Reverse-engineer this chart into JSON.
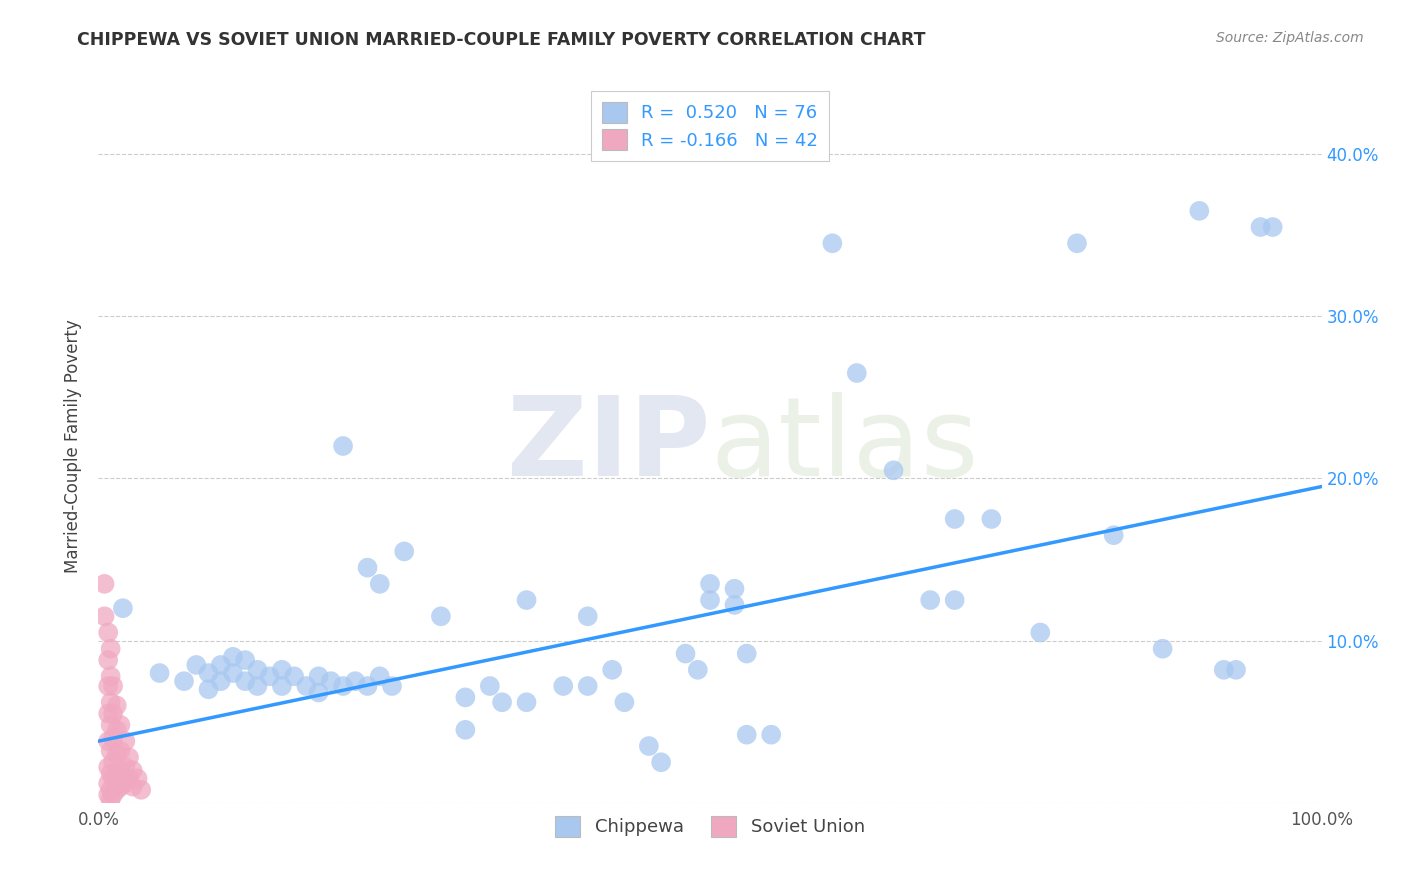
{
  "title": "CHIPPEWA VS SOVIET UNION MARRIED-COUPLE FAMILY POVERTY CORRELATION CHART",
  "source": "Source: ZipAtlas.com",
  "ylabel": "Married-Couple Family Poverty",
  "xlim": [
    0.0,
    1.0
  ],
  "ylim": [
    0.0,
    0.44
  ],
  "chippewa_color": "#a8c8f0",
  "soviet_color": "#f0a8c0",
  "trend_color": "#3399ff",
  "watermark_zip": "ZIP",
  "watermark_atlas": "atlas",
  "chippewa_points": [
    [
      0.02,
      0.12
    ],
    [
      0.05,
      0.08
    ],
    [
      0.07,
      0.075
    ],
    [
      0.08,
      0.085
    ],
    [
      0.09,
      0.08
    ],
    [
      0.09,
      0.07
    ],
    [
      0.1,
      0.085
    ],
    [
      0.1,
      0.075
    ],
    [
      0.11,
      0.09
    ],
    [
      0.11,
      0.08
    ],
    [
      0.12,
      0.088
    ],
    [
      0.12,
      0.075
    ],
    [
      0.13,
      0.082
    ],
    [
      0.13,
      0.072
    ],
    [
      0.14,
      0.078
    ],
    [
      0.15,
      0.082
    ],
    [
      0.15,
      0.072
    ],
    [
      0.16,
      0.078
    ],
    [
      0.17,
      0.072
    ],
    [
      0.18,
      0.078
    ],
    [
      0.18,
      0.068
    ],
    [
      0.19,
      0.075
    ],
    [
      0.2,
      0.072
    ],
    [
      0.21,
      0.075
    ],
    [
      0.22,
      0.072
    ],
    [
      0.23,
      0.078
    ],
    [
      0.24,
      0.072
    ],
    [
      0.2,
      0.22
    ],
    [
      0.22,
      0.145
    ],
    [
      0.23,
      0.135
    ],
    [
      0.25,
      0.155
    ],
    [
      0.28,
      0.115
    ],
    [
      0.3,
      0.065
    ],
    [
      0.3,
      0.045
    ],
    [
      0.32,
      0.072
    ],
    [
      0.33,
      0.062
    ],
    [
      0.35,
      0.125
    ],
    [
      0.35,
      0.062
    ],
    [
      0.38,
      0.072
    ],
    [
      0.4,
      0.115
    ],
    [
      0.4,
      0.072
    ],
    [
      0.42,
      0.082
    ],
    [
      0.43,
      0.062
    ],
    [
      0.45,
      0.035
    ],
    [
      0.46,
      0.025
    ],
    [
      0.48,
      0.092
    ],
    [
      0.49,
      0.082
    ],
    [
      0.5,
      0.135
    ],
    [
      0.5,
      0.125
    ],
    [
      0.52,
      0.132
    ],
    [
      0.52,
      0.122
    ],
    [
      0.53,
      0.092
    ],
    [
      0.53,
      0.042
    ],
    [
      0.55,
      0.042
    ],
    [
      0.6,
      0.345
    ],
    [
      0.62,
      0.265
    ],
    [
      0.65,
      0.205
    ],
    [
      0.68,
      0.125
    ],
    [
      0.7,
      0.175
    ],
    [
      0.7,
      0.125
    ],
    [
      0.73,
      0.175
    ],
    [
      0.77,
      0.105
    ],
    [
      0.8,
      0.345
    ],
    [
      0.83,
      0.165
    ],
    [
      0.87,
      0.095
    ],
    [
      0.9,
      0.365
    ],
    [
      0.92,
      0.082
    ],
    [
      0.93,
      0.082
    ],
    [
      0.95,
      0.355
    ],
    [
      0.96,
      0.355
    ]
  ],
  "soviet_points": [
    [
      0.005,
      0.135
    ],
    [
      0.005,
      0.115
    ],
    [
      0.008,
      0.105
    ],
    [
      0.008,
      0.088
    ],
    [
      0.008,
      0.072
    ],
    [
      0.008,
      0.055
    ],
    [
      0.008,
      0.038
    ],
    [
      0.008,
      0.022
    ],
    [
      0.008,
      0.012
    ],
    [
      0.008,
      0.005
    ],
    [
      0.01,
      0.095
    ],
    [
      0.01,
      0.078
    ],
    [
      0.01,
      0.062
    ],
    [
      0.01,
      0.048
    ],
    [
      0.01,
      0.032
    ],
    [
      0.01,
      0.018
    ],
    [
      0.01,
      0.008
    ],
    [
      0.01,
      0.002
    ],
    [
      0.012,
      0.072
    ],
    [
      0.012,
      0.055
    ],
    [
      0.012,
      0.04
    ],
    [
      0.012,
      0.025
    ],
    [
      0.012,
      0.015
    ],
    [
      0.012,
      0.005
    ],
    [
      0.015,
      0.06
    ],
    [
      0.015,
      0.045
    ],
    [
      0.015,
      0.03
    ],
    [
      0.015,
      0.018
    ],
    [
      0.015,
      0.008
    ],
    [
      0.018,
      0.048
    ],
    [
      0.018,
      0.032
    ],
    [
      0.018,
      0.02
    ],
    [
      0.018,
      0.01
    ],
    [
      0.022,
      0.038
    ],
    [
      0.022,
      0.022
    ],
    [
      0.022,
      0.012
    ],
    [
      0.025,
      0.028
    ],
    [
      0.025,
      0.015
    ],
    [
      0.028,
      0.02
    ],
    [
      0.028,
      0.01
    ],
    [
      0.032,
      0.015
    ],
    [
      0.035,
      0.008
    ]
  ],
  "trend_x": [
    0.0,
    1.0
  ],
  "trend_y_start": 0.038,
  "trend_y_end": 0.195
}
